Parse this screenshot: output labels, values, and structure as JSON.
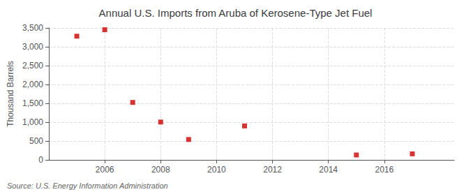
{
  "chart_data": {
    "type": "scatter",
    "title": "Annual U.S. Imports from Aruba of Kerosene-Type Jet Fuel",
    "ylabel": "Thousand Barrels",
    "annotations": [
      "Source: U.S. Energy Information Administration"
    ],
    "x": [
      2005,
      2006,
      2007,
      2008,
      2009,
      2011,
      2015,
      2017
    ],
    "values": [
      3281,
      3452,
      1524,
      1004,
      541,
      900,
      130,
      160
    ],
    "color": "#cc0000",
    "marker": "square",
    "xlim": [
      2004.0,
      2018.5
    ],
    "ylim": [
      0,
      3500
    ],
    "xticks": [
      2006,
      2008,
      2010,
      2012,
      2014,
      2016
    ],
    "yticks": [
      0,
      500,
      {
        "value": 1000,
        "label": "1,000"
      },
      {
        "value": 1500,
        "label": "1,500"
      },
      {
        "value": 2000,
        "label": "2,000"
      },
      {
        "value": 2500,
        "label": "2,500"
      },
      {
        "value": 3000,
        "label": "3,000"
      },
      {
        "value": 3500,
        "label": "3,500"
      }
    ],
    "grid": true
  }
}
